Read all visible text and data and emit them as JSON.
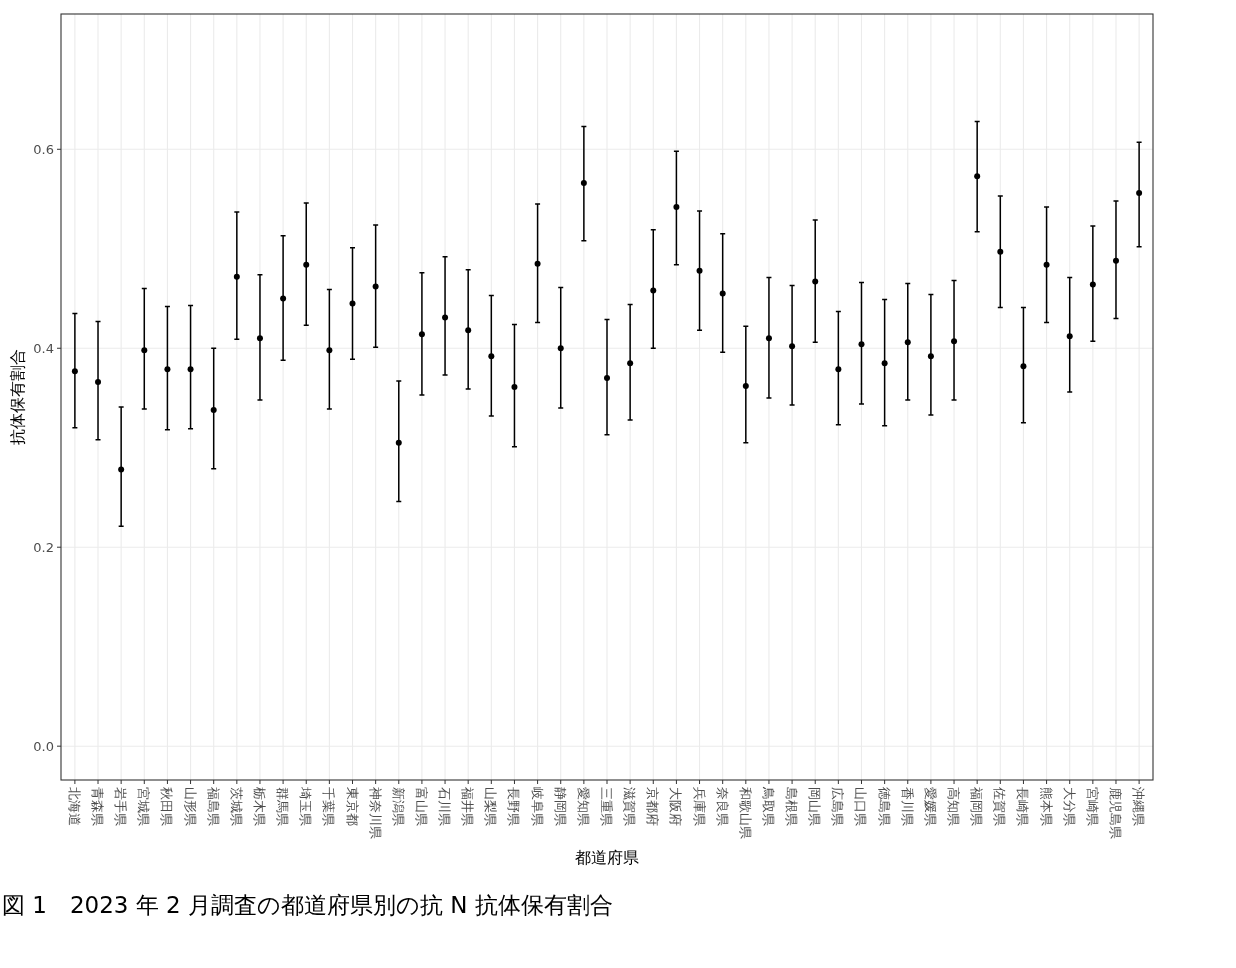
{
  "chart_data": {
    "type": "scatter",
    "xlabel": "都道府県",
    "ylabel": "抗体保有割合",
    "annotations": [
      "図 1　2023 年 2 月調査の都道府県別の抗 N 抗体保有割合"
    ],
    "categories": [
      "北海道",
      "青森県",
      "岩手県",
      "宮城県",
      "秋田県",
      "山形県",
      "福島県",
      "茨城県",
      "栃木県",
      "群馬県",
      "埼玉県",
      "千葉県",
      "東京都",
      "神奈川県",
      "新潟県",
      "富山県",
      "石川県",
      "福井県",
      "山梨県",
      "長野県",
      "岐阜県",
      "静岡県",
      "愛知県",
      "三重県",
      "滋賀県",
      "京都府",
      "大阪府",
      "兵庫県",
      "奈良県",
      "和歌山県",
      "鳥取県",
      "島根県",
      "岡山県",
      "広島県",
      "山口県",
      "徳島県",
      "香川県",
      "愛媛県",
      "高知県",
      "福岡県",
      "佐賀県",
      "長崎県",
      "熊本県",
      "大分県",
      "宮崎県",
      "鹿児島県",
      "沖縄県"
    ],
    "series": [
      {
        "color": "#000000",
        "values": [
          0.377,
          0.366,
          0.278,
          0.398,
          0.379,
          0.379,
          0.338,
          0.472,
          0.41,
          0.45,
          0.484,
          0.398,
          0.445,
          0.462,
          0.305,
          0.414,
          0.431,
          0.418,
          0.392,
          0.361,
          0.485,
          0.4,
          0.566,
          0.37,
          0.385,
          0.458,
          0.542,
          0.478,
          0.455,
          0.362,
          0.41,
          0.402,
          0.467,
          0.379,
          0.404,
          0.385,
          0.406,
          0.392,
          0.407,
          0.573,
          0.497,
          0.382,
          0.484,
          0.412,
          0.464,
          0.488,
          0.556
        ],
        "errors": [
          [
            0.32,
            0.435
          ],
          [
            0.308,
            0.427
          ],
          [
            0.221,
            0.341
          ],
          [
            0.339,
            0.46
          ],
          [
            0.318,
            0.442
          ],
          [
            0.319,
            0.443
          ],
          [
            0.279,
            0.4
          ],
          [
            0.409,
            0.537
          ],
          [
            0.348,
            0.474
          ],
          [
            0.388,
            0.513
          ],
          [
            0.423,
            0.546
          ],
          [
            0.339,
            0.459
          ],
          [
            0.389,
            0.501
          ],
          [
            0.401,
            0.524
          ],
          [
            0.246,
            0.367
          ],
          [
            0.353,
            0.476
          ],
          [
            0.373,
            0.492
          ],
          [
            0.359,
            0.479
          ],
          [
            0.332,
            0.453
          ],
          [
            0.301,
            0.424
          ],
          [
            0.426,
            0.545
          ],
          [
            0.34,
            0.461
          ],
          [
            0.508,
            0.623
          ],
          [
            0.313,
            0.429
          ],
          [
            0.328,
            0.444
          ],
          [
            0.4,
            0.519
          ],
          [
            0.484,
            0.598
          ],
          [
            0.418,
            0.538
          ],
          [
            0.396,
            0.515
          ],
          [
            0.305,
            0.422
          ],
          [
            0.35,
            0.471
          ],
          [
            0.343,
            0.463
          ],
          [
            0.406,
            0.529
          ],
          [
            0.323,
            0.437
          ],
          [
            0.344,
            0.466
          ],
          [
            0.322,
            0.449
          ],
          [
            0.348,
            0.465
          ],
          [
            0.333,
            0.454
          ],
          [
            0.348,
            0.468
          ],
          [
            0.517,
            0.628
          ],
          [
            0.441,
            0.553
          ],
          [
            0.325,
            0.441
          ],
          [
            0.426,
            0.542
          ],
          [
            0.356,
            0.471
          ],
          [
            0.407,
            0.523
          ],
          [
            0.43,
            0.548
          ],
          [
            0.502,
            0.607
          ]
        ]
      }
    ],
    "ylim": [
      -0.034,
      0.736
    ],
    "yticks": [
      {
        "value": 0,
        "label": "0.0"
      },
      {
        "value": 0.2,
        "label": "0.2"
      },
      {
        "value": 0.4,
        "label": "0.4"
      },
      {
        "value": 0.6,
        "label": "0.6"
      }
    ],
    "grid": true,
    "marker": "circle"
  }
}
